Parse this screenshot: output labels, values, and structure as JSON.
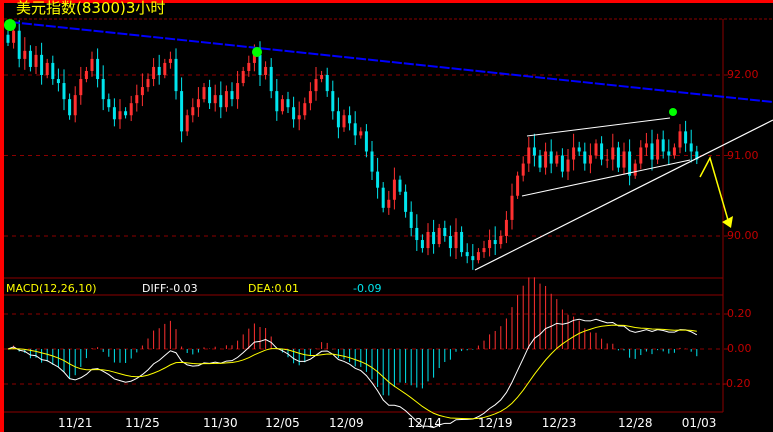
{
  "title": "美元指数(8300)3小时",
  "macd": {
    "label": "MACD(12,26,10)",
    "diff": "DIFF:-0.03",
    "dea": "DEA:0.01",
    "macd": "-0.09"
  },
  "colors": {
    "up": "#ff3030",
    "down": "#00e5ee",
    "border": "#ff0000",
    "grid": "#8b0000",
    "axis_text": "#c00000",
    "diff": "#ffffff",
    "dea": "#ffff00",
    "trend_blue": "#0000ff",
    "marker": "#00ff00",
    "arrow": "#ffff00"
  },
  "chart_data": {
    "type": "candlestick",
    "series_closes": [
      92.4,
      92.55,
      92.2,
      92.3,
      92.1,
      92.25,
      92.0,
      92.15,
      91.95,
      91.9,
      91.7,
      91.5,
      91.75,
      91.95,
      92.05,
      92.2,
      91.95,
      91.7,
      91.6,
      91.45,
      91.55,
      91.5,
      91.65,
      91.75,
      91.85,
      91.95,
      92.1,
      92.0,
      92.15,
      92.2,
      91.8,
      91.3,
      91.5,
      91.6,
      91.7,
      91.85,
      91.65,
      91.75,
      91.6,
      91.8,
      91.7,
      91.9,
      92.05,
      92.15,
      92.25,
      92.0,
      92.1,
      91.8,
      91.55,
      91.7,
      91.6,
      91.45,
      91.5,
      91.65,
      91.8,
      91.95,
      92.0,
      91.8,
      91.55,
      91.35,
      91.5,
      91.4,
      91.25,
      91.3,
      91.05,
      90.8,
      90.6,
      90.35,
      90.45,
      90.7,
      90.55,
      90.3,
      90.1,
      89.95,
      89.85,
      90.05,
      89.9,
      90.1,
      90.0,
      89.85,
      90.05,
      89.8,
      89.75,
      89.7,
      89.8,
      89.85,
      89.95,
      89.9,
      90.0,
      90.2,
      90.5,
      90.75,
      90.9,
      91.1,
      91.0,
      90.85,
      91.05,
      90.9,
      91.0,
      90.8,
      90.95,
      91.1,
      91.05,
      90.9,
      91.0,
      91.15,
      90.95,
      90.95,
      91.1,
      90.85,
      91.05,
      90.75,
      90.9,
      91.1,
      91.15,
      90.95,
      91.2,
      91.05,
      91.0,
      91.1,
      91.3,
      91.15,
      91.05,
      90.95
    ],
    "y_ticks": [
      "92.00",
      "91.00",
      "90.00"
    ],
    "y_tick_values": [
      92,
      91,
      90
    ],
    "macd_ticks": [
      "0.20",
      "0.00",
      "-0.20"
    ],
    "macd_tick_values": [
      0.2,
      0,
      -0.2
    ],
    "x_ticks": [
      {
        "label": "11/21",
        "bar": 11.6
      },
      {
        "label": "11/25",
        "bar": 23.6
      },
      {
        "label": "11/30",
        "bar": 37.5
      },
      {
        "label": "12/05",
        "bar": 48.6
      },
      {
        "label": "12/09",
        "bar": 60
      },
      {
        "label": "12/14",
        "bar": 74
      },
      {
        "label": "12/19",
        "bar": 86.6
      },
      {
        "label": "12/23",
        "bar": 98
      },
      {
        "label": "12/28",
        "bar": 111.6
      },
      {
        "label": "01/03",
        "bar": 123
      }
    ],
    "ylim": [
      89.5,
      92.7
    ],
    "grid": true
  }
}
